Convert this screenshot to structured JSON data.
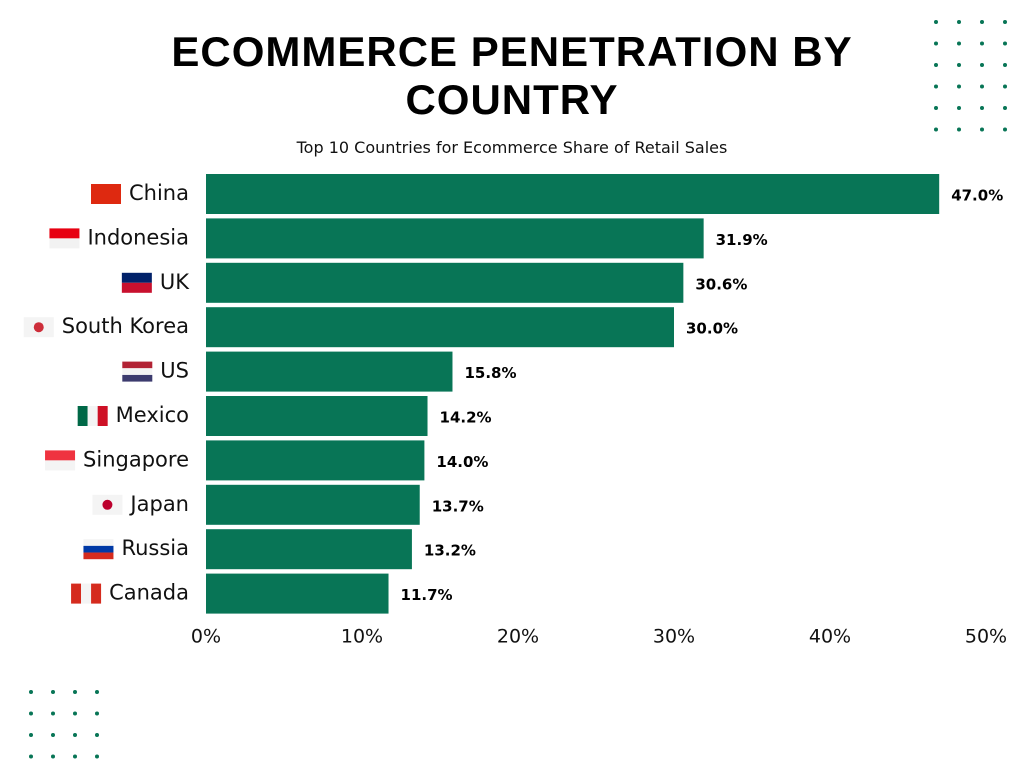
{
  "chart_data": {
    "type": "bar",
    "orientation": "horizontal",
    "title": "ECOMMERCE PENETRATION BY COUNTRY",
    "subtitle": "Top 10 Countries for Ecommerce Share of Retail Sales",
    "categories": [
      "China",
      "Indonesia",
      "UK",
      "South Korea",
      "US",
      "Mexico",
      "Singapore",
      "Japan",
      "Russia",
      "Canada"
    ],
    "values": [
      47.0,
      31.9,
      30.6,
      30.0,
      15.8,
      14.2,
      14.0,
      13.7,
      13.2,
      11.7
    ],
    "value_labels": [
      "47.0%",
      "31.9%",
      "30.6%",
      "30.0%",
      "15.8%",
      "14.2%",
      "14.0%",
      "13.7%",
      "13.2%",
      "11.7%"
    ],
    "color": "#087556",
    "xlim": [
      0,
      50
    ],
    "xticks": [
      {
        "value": 0,
        "label": "0%"
      },
      {
        "value": 10,
        "label": "10%"
      },
      {
        "value": 20,
        "label": "20%"
      },
      {
        "value": 30,
        "label": "30%"
      },
      {
        "value": 40,
        "label": "40%"
      },
      {
        "value": 50,
        "label": "50%"
      }
    ],
    "grid": false
  }
}
